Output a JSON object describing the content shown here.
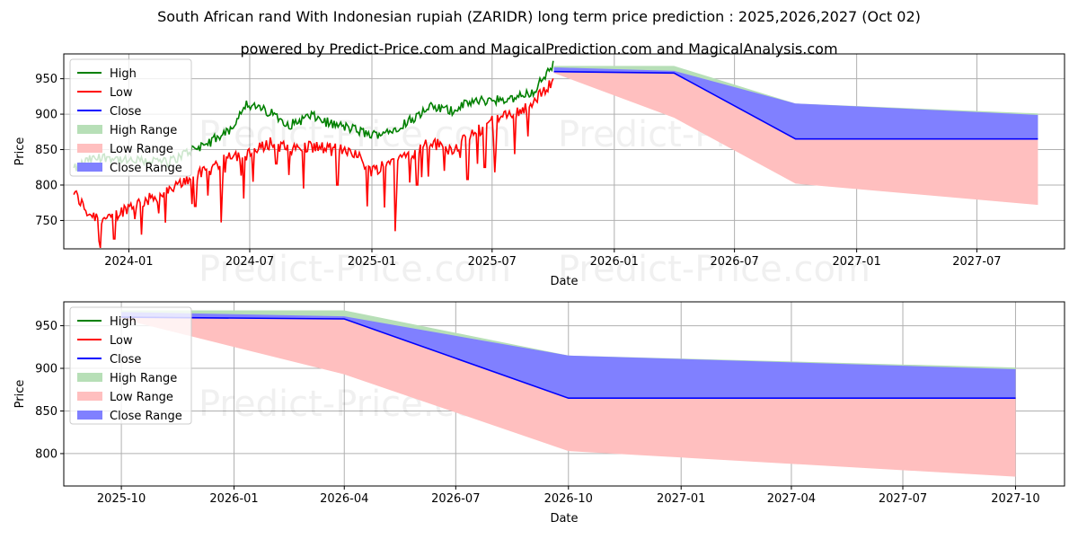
{
  "title": "South African rand With Indonesian rupiah (ZARIDR) long term price prediction : 2025,2026,2027 (Oct 02)",
  "subtitle": "powered by Predict-Price.com and MagicalPrediction.com and MagicalAnalysis.com",
  "watermark": "Predict-Price.com",
  "colors": {
    "high": "#008000",
    "low": "#ff0000",
    "close": "#0000ff",
    "high_range": "#b7dfb7",
    "low_range": "#ffbfbf",
    "close_range": "#8080ff"
  },
  "chart_data": [
    {
      "type": "line",
      "title": "",
      "xlabel": "Date",
      "ylabel": "Price",
      "xlim": [
        "2023-09-25",
        "2027-11-10"
      ],
      "ylim": [
        710,
        985
      ],
      "yticks": [
        750,
        800,
        850,
        900,
        950
      ],
      "xticks": [
        {
          "date": "2024-01-01",
          "label": "2024-01"
        },
        {
          "date": "2024-07-01",
          "label": "2024-07"
        },
        {
          "date": "2025-01-01",
          "label": "2025-01"
        },
        {
          "date": "2025-07-01",
          "label": "2025-07"
        },
        {
          "date": "2026-01-01",
          "label": "2026-01"
        },
        {
          "date": "2026-07-01",
          "label": "2026-07"
        },
        {
          "date": "2027-01-01",
          "label": "2027-01"
        },
        {
          "date": "2027-07-01",
          "label": "2027-07"
        }
      ],
      "grid": true,
      "legend": {
        "position": "top-left",
        "entries": [
          "High",
          "Low",
          "Close",
          "High Range",
          "Low Range",
          "Close Range"
        ]
      },
      "history": {
        "dates": [
          "2023-10-10",
          "2023-11-01",
          "2023-12-01",
          "2024-01-01",
          "2024-02-01",
          "2024-03-01",
          "2024-04-01",
          "2024-05-01",
          "2024-06-01",
          "2024-06-25",
          "2024-08-01",
          "2024-09-01",
          "2024-10-01",
          "2024-11-01",
          "2024-12-01",
          "2025-01-01",
          "2025-02-01",
          "2025-03-01",
          "2025-04-01",
          "2025-05-01",
          "2025-06-01",
          "2025-07-01",
          "2025-08-01",
          "2025-09-01",
          "2025-10-02"
        ],
        "high": [
          822,
          835,
          840,
          833,
          835,
          832,
          848,
          860,
          878,
          915,
          902,
          885,
          898,
          886,
          880,
          870,
          878,
          893,
          910,
          905,
          918,
          920,
          922,
          932,
          970
        ],
        "low": [
          790,
          760,
          750,
          770,
          780,
          790,
          810,
          820,
          845,
          840,
          860,
          850,
          855,
          850,
          850,
          820,
          835,
          845,
          860,
          850,
          870,
          890,
          900,
          915,
          950
        ],
        "spikes": [
          [
            "2023-11-20",
            745
          ],
          [
            "2023-12-10",
            724
          ],
          [
            "2024-01-10",
            752
          ],
          [
            "2024-02-15",
            760
          ],
          [
            "2024-04-10",
            770
          ],
          [
            "2024-05-20",
            800
          ],
          [
            "2024-08-10",
            830
          ],
          [
            "2024-09-20",
            795
          ],
          [
            "2024-11-10",
            800
          ],
          [
            "2024-12-25",
            770
          ],
          [
            "2025-01-20",
            800
          ],
          [
            "2025-02-05",
            735
          ],
          [
            "2025-03-10",
            800
          ],
          [
            "2025-04-20",
            820
          ],
          [
            "2025-05-25",
            808
          ],
          [
            "2025-06-20",
            825
          ],
          [
            "2025-07-05",
            818
          ]
        ]
      },
      "forecast": {
        "dates": [
          "2025-10-02",
          "2026-04-01",
          "2026-10-01",
          "2027-10-01"
        ],
        "high_range": [
          [
            960,
            968
          ],
          [
            958,
            968
          ],
          [
            865,
            915
          ],
          [
            865,
            901
          ]
        ],
        "low_range": [
          [
            958,
            963
          ],
          [
            895,
            958
          ],
          [
            802,
            865
          ],
          [
            772,
            865
          ]
        ],
        "close_range": [
          [
            960,
            966
          ],
          [
            958,
            961
          ],
          [
            865,
            915
          ],
          [
            865,
            899
          ]
        ],
        "close": [
          960,
          958,
          865,
          865
        ]
      }
    },
    {
      "type": "line",
      "title": "",
      "xlabel": "Date",
      "ylabel": "Price",
      "xlim": [
        "2025-08-15",
        "2027-11-10"
      ],
      "ylim": [
        762,
        978
      ],
      "yticks": [
        800,
        850,
        900,
        950
      ],
      "xticks": [
        {
          "date": "2025-10-01",
          "label": "2025-10"
        },
        {
          "date": "2026-01-01",
          "label": "2026-01"
        },
        {
          "date": "2026-04-01",
          "label": "2026-04"
        },
        {
          "date": "2026-07-01",
          "label": "2026-07"
        },
        {
          "date": "2026-10-01",
          "label": "2026-10"
        },
        {
          "date": "2027-01-01",
          "label": "2027-01"
        },
        {
          "date": "2027-04-01",
          "label": "2027-04"
        },
        {
          "date": "2027-07-01",
          "label": "2027-07"
        },
        {
          "date": "2027-10-01",
          "label": "2027-10"
        }
      ],
      "grid": true,
      "legend": {
        "position": "top-left",
        "entries": [
          "High",
          "Low",
          "Close",
          "High Range",
          "Low Range",
          "Close Range"
        ]
      },
      "forecast": {
        "dates": [
          "2025-10-01",
          "2026-04-01",
          "2026-10-01",
          "2027-10-01"
        ],
        "high_range": [
          [
            962,
            968
          ],
          [
            960,
            968
          ],
          [
            865,
            915
          ],
          [
            865,
            901
          ]
        ],
        "low_range": [
          [
            958,
            962
          ],
          [
            893,
            958
          ],
          [
            803,
            865
          ],
          [
            773,
            865
          ]
        ],
        "close_range": [
          [
            960,
            966
          ],
          [
            958,
            961
          ],
          [
            865,
            915
          ],
          [
            865,
            899
          ]
        ],
        "close": [
          960,
          958,
          865,
          865
        ]
      }
    }
  ]
}
